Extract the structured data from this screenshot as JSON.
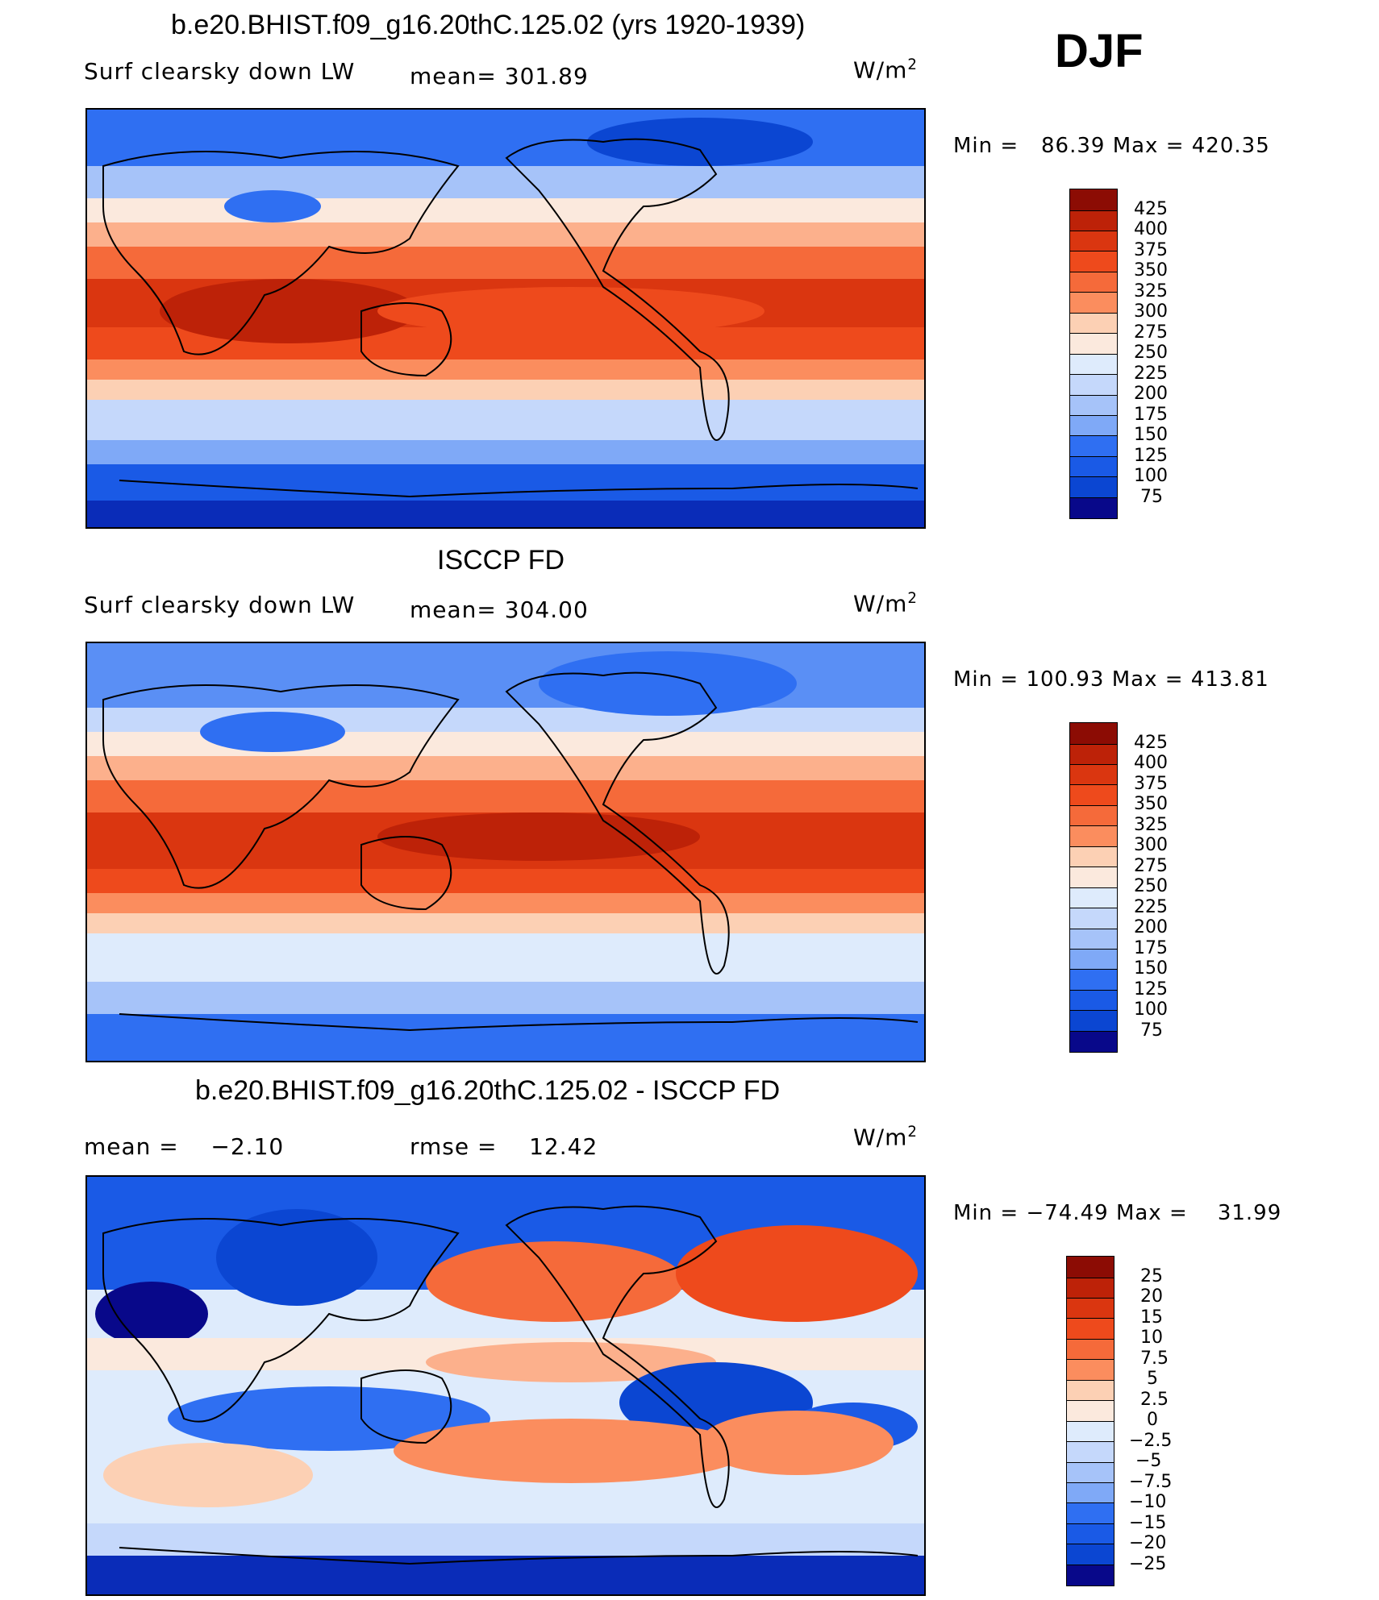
{
  "season": "DJF",
  "colors": {
    "levels_19": [
      "#08088a",
      "#0a2cb8",
      "#0b46d2",
      "#1a5ae6",
      "#2f6ff2",
      "#5a8ff5",
      "#7fa9f7",
      "#a6c3f9",
      "#c5d8fb",
      "#deebfc",
      "#fbe9dd",
      "#fcd0b4",
      "#fcb08c",
      "#fb8d5e",
      "#f56a3a",
      "#ee4a1c",
      "#da3610",
      "#bd2208",
      "#8c0c04"
    ]
  },
  "panels": [
    {
      "title": "b.e20.BHIST.f09_g16.20thC.125.02 (yrs 1920-1939)",
      "subtitle": "Surf clearsky down LW",
      "mean_label": "mean=",
      "mean_value": "301.89",
      "units": "W/m",
      "units_sup": "2",
      "min_label": "Min =",
      "min_value": "86.39",
      "max_label": "Max =",
      "max_value": "420.35",
      "colorbar": [
        "425",
        "400",
        "375",
        "350",
        "325",
        "300",
        "275",
        "250",
        "225",
        "200",
        "175",
        "150",
        "125",
        "100",
        "75"
      ]
    },
    {
      "title": "ISCCP FD",
      "subtitle": "Surf clearsky down LW",
      "mean_label": "mean=",
      "mean_value": "304.00",
      "units": "W/m",
      "units_sup": "2",
      "min_label": "Min =",
      "min_value": "100.93",
      "max_label": "Max =",
      "max_value": "413.81",
      "colorbar": [
        "425",
        "400",
        "375",
        "350",
        "325",
        "300",
        "275",
        "250",
        "225",
        "200",
        "175",
        "150",
        "125",
        "100",
        "75"
      ]
    },
    {
      "title": "b.e20.BHIST.f09_g16.20thC.125.02 - ISCCP FD",
      "mean_label": "mean =",
      "mean_value": "−2.10",
      "rmse_label": "rmse =",
      "rmse_value": "12.42",
      "units": "W/m",
      "units_sup": "2",
      "min_label": "Min =",
      "min_value": "−74.49",
      "max_label": "Max =",
      "max_value": "31.99",
      "colorbar": [
        "25",
        "20",
        "15",
        "10",
        "7.5",
        "5",
        "2.5",
        "0",
        "−2.5",
        "−5",
        "−7.5",
        "−10",
        "−15",
        "−20",
        "−25"
      ]
    }
  ]
}
